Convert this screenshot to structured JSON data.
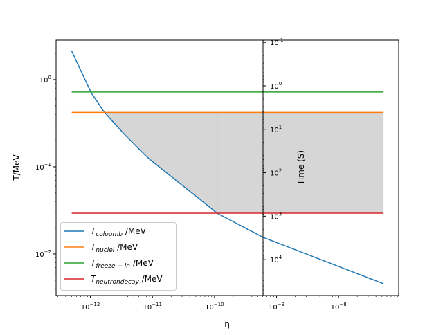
{
  "chart_data": {
    "type": "line",
    "title": "",
    "xlabel": "η",
    "ylabel": "T/MeV",
    "y2label": "Time (S)",
    "xscale": "log",
    "yscale": "log",
    "y2scale": "log",
    "y2_inverted": true,
    "xlim": [
      2.8e-13,
      9.3e-08
    ],
    "ylim": [
      0.00334,
      2.83
    ],
    "y2lim": [
      0.089,
      67000
    ],
    "grid": false,
    "legend_position": "lower-left",
    "x_ticks": [
      {
        "value": 1e-12,
        "base": "10",
        "exp": "−12"
      },
      {
        "value": 1e-11,
        "base": "10",
        "exp": "−11"
      },
      {
        "value": 1e-10,
        "base": "10",
        "exp": "−10"
      },
      {
        "value": 1e-09,
        "base": "10",
        "exp": "−9"
      },
      {
        "value": 1e-08,
        "base": "10",
        "exp": "−8"
      }
    ],
    "y_ticks": [
      {
        "value": 1,
        "base": "10",
        "exp": "0"
      },
      {
        "value": 0.1,
        "base": "10",
        "exp": "−1"
      },
      {
        "value": 0.01,
        "base": "10",
        "exp": "−2"
      }
    ],
    "y2_ticks": [
      {
        "value": 0.1,
        "base": "10",
        "exp": " 1"
      },
      {
        "value": 1,
        "base": "10",
        "exp": "0"
      },
      {
        "value": 10,
        "base": "10",
        "exp": "1"
      },
      {
        "value": 100,
        "base": "10",
        "exp": "2"
      },
      {
        "value": 1000,
        "base": "10",
        "exp": "3"
      },
      {
        "value": 10000,
        "base": "10",
        "exp": "4"
      }
    ],
    "series": [
      {
        "name": "T_coloumb /MeV",
        "sub": "coloumb",
        "color": "#1f77b4",
        "x": [
          5e-13,
          1.03e-12,
          1.67e-12,
          3.6e-12,
          8.4e-12,
          1.1e-10,
          6.1e-10,
          1e-08,
          5.3e-08
        ],
        "y": [
          2.12,
          0.707,
          0.424,
          0.232,
          0.127,
          0.0294,
          0.0155,
          0.0072,
          0.00456
        ]
      },
      {
        "name": "T_nuclei /MeV",
        "sub": "nuclei",
        "color": "#ff7f0e",
        "x": [
          5e-13,
          5.3e-08
        ],
        "y": [
          0.42,
          0.42
        ]
      },
      {
        "name": "T_freeze−in /MeV",
        "sub": "freeze − in",
        "color": "#2ca02c",
        "x": [
          5e-13,
          5.3e-08
        ],
        "y": [
          0.72,
          0.72
        ]
      },
      {
        "name": "T_neutrondecay /MeV",
        "sub": "neutrondecay",
        "color": "#d62728",
        "x": [
          5e-13,
          5.3e-08
        ],
        "y": [
          0.0294,
          0.0294
        ]
      }
    ],
    "legend_suffix": " /MeV",
    "legend_main": "T",
    "shaded_region": {
      "color": "#d6d6d6",
      "x_start": 1.67e-12,
      "x_end": 5.3e-08,
      "upper": 0.42,
      "lower_bound": "max(T_coloumb, T_neutrondecay)",
      "divider_x": 1.1e-10
    }
  }
}
